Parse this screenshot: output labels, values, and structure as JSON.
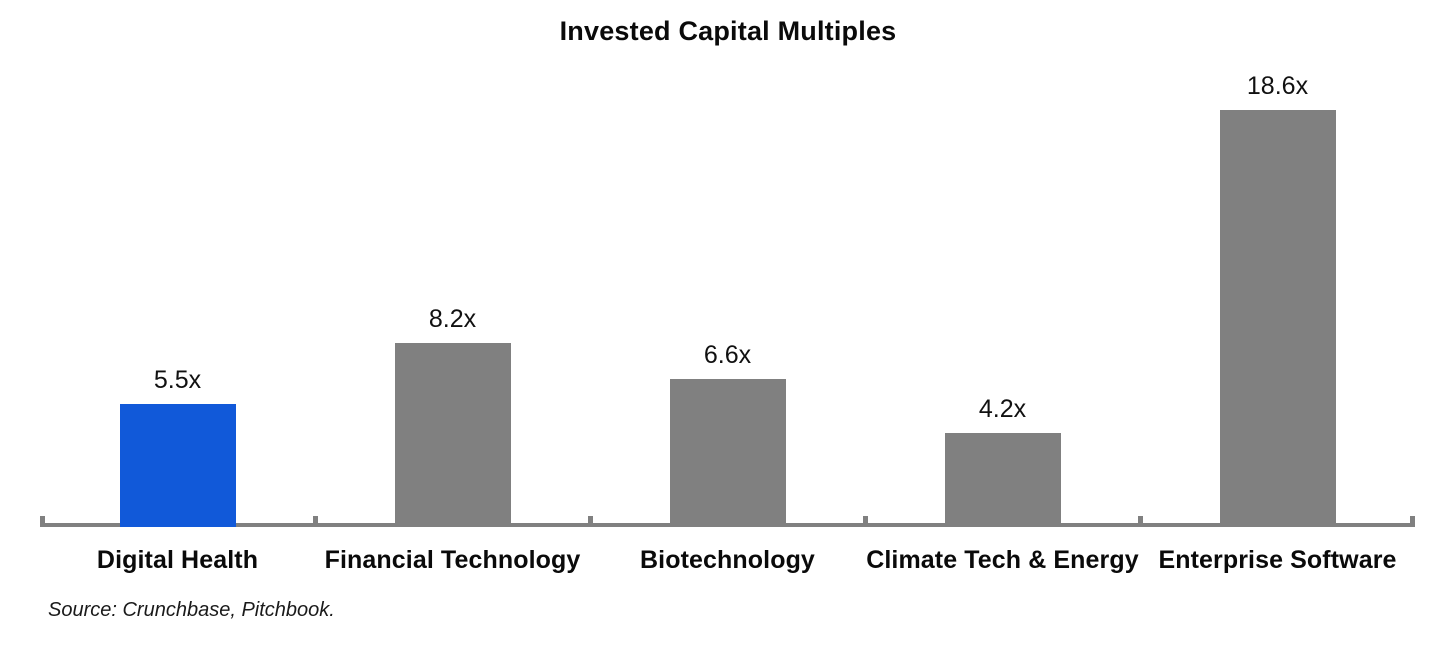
{
  "chart_data": {
    "type": "bar",
    "title": "Invested Capital Multiples",
    "categories": [
      "Digital Health",
      "Financial Technology",
      "Biotechnology",
      "Climate Tech & Energy",
      "Enterprise Software"
    ],
    "values": [
      5.5,
      8.2,
      6.6,
      4.2,
      18.6
    ],
    "data_labels": [
      "5.5x",
      "8.2x",
      "6.6x",
      "4.2x",
      "18.6x"
    ],
    "bar_colors": [
      "#1159D9",
      "#808080",
      "#808080",
      "#808080",
      "#808080"
    ],
    "highlight_color": "#1159D9",
    "default_bar_color": "#808080",
    "axis_color": "#808080",
    "title_color": "#0a0a0a",
    "label_color": "#111111",
    "xlabel": "",
    "ylabel": "",
    "ylim": [
      0,
      20
    ],
    "grid": false,
    "legend": false,
    "source_note": "Source: Crunchbase, Pitchbook."
  }
}
